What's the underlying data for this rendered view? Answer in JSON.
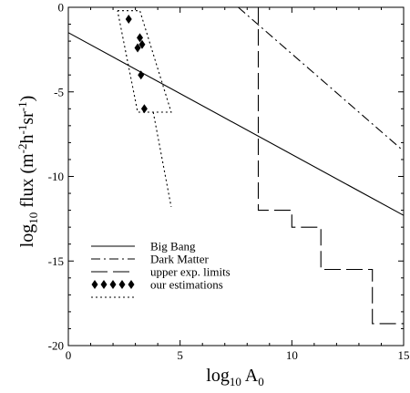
{
  "chart_data": {
    "type": "line",
    "xlabel": "log10 A0",
    "xlabel_parts": {
      "base": "log",
      "base_sub": "10",
      "var": " A",
      "var_sub": "0"
    },
    "ylabel": "log10 flux (m-2h-1sr-1)",
    "ylabel_parts": {
      "a": "log",
      "a_sub": "10",
      "b": " flux (m",
      "c": "-2",
      "d": "h",
      "e": "-1",
      "f": "sr",
      "g": "-1",
      "h": ")"
    },
    "xlim": [
      0,
      15
    ],
    "ylim": [
      -20,
      0
    ],
    "x_ticks": [
      0,
      5,
      10,
      15
    ],
    "y_ticks": [
      0,
      -5,
      -10,
      -15,
      -20
    ],
    "x_tick_labels": [
      "0",
      "5",
      "10",
      "15"
    ],
    "y_tick_labels": [
      "0",
      "-5",
      "-10",
      "-15",
      "-20"
    ],
    "legend_position": "bottom-left",
    "grid": false,
    "series": [
      {
        "name": "Big Bang",
        "style": "solid",
        "points": [
          [
            0,
            -1.5
          ],
          [
            15,
            -12.3
          ]
        ]
      },
      {
        "name": "Dark Matter",
        "style": "dashdot",
        "points": [
          [
            7.6,
            0
          ],
          [
            15,
            -8.5
          ]
        ]
      },
      {
        "name": "upper exp. limits",
        "style": "longdash",
        "points": [
          [
            8.5,
            0
          ],
          [
            8.5,
            -12
          ],
          [
            10,
            -12
          ],
          [
            10,
            -13
          ],
          [
            11.3,
            -13
          ],
          [
            11.3,
            -15.5
          ],
          [
            13.6,
            -15.5
          ],
          [
            13.6,
            -18.7
          ],
          [
            15,
            -18.7
          ]
        ]
      },
      {
        "name": "our estimations",
        "style": "diamond",
        "points": [
          [
            2.7,
            -0.7
          ],
          [
            3.1,
            -2.4
          ],
          [
            3.2,
            -1.8
          ],
          [
            3.3,
            -2.2
          ],
          [
            3.25,
            -4.0
          ],
          [
            3.4,
            -6.0
          ]
        ]
      },
      {
        "name": "",
        "style": "dotted",
        "points": [
          [
            2.2,
            -0.2
          ],
          [
            3.2,
            -0.2
          ],
          [
            4.6,
            -6.2
          ],
          [
            3.1,
            -6.2
          ],
          [
            2.2,
            -0.2
          ]
        ]
      },
      {
        "name": "",
        "style": "dotted",
        "points": [
          [
            3.8,
            -6.2
          ],
          [
            4.6,
            -11.8
          ]
        ]
      }
    ]
  }
}
